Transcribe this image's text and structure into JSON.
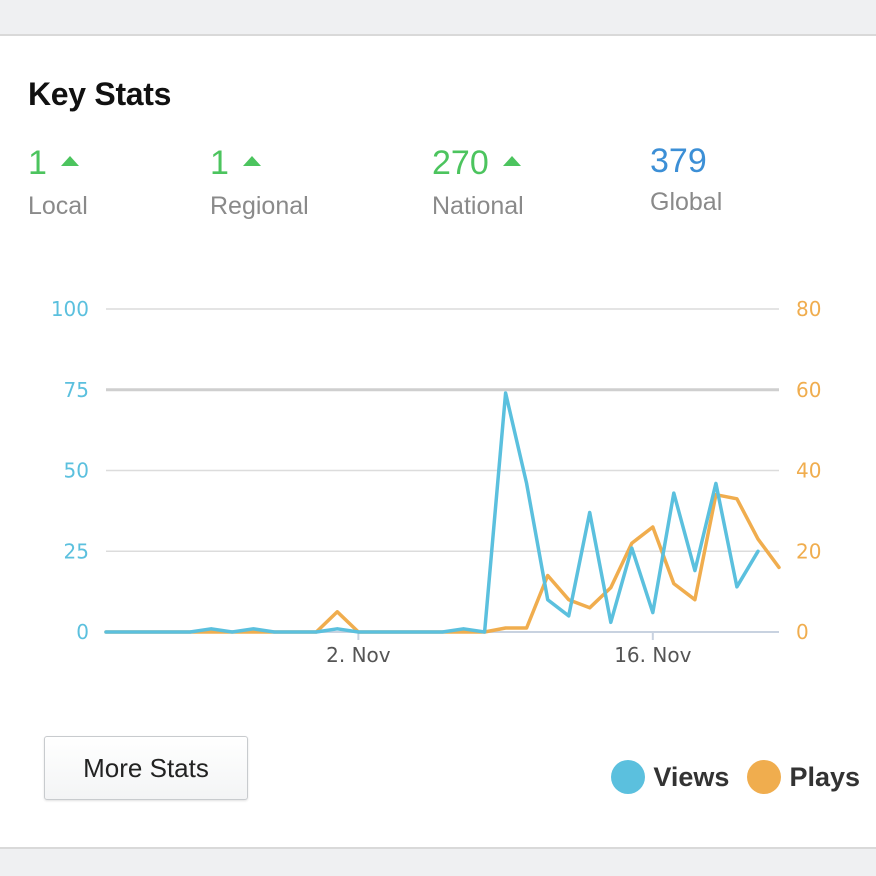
{
  "card": {
    "title": "Key Stats",
    "stats": [
      {
        "value": "1",
        "label": "Local",
        "trend": "up",
        "color": "#4cc45e"
      },
      {
        "value": "1",
        "label": "Regional",
        "trend": "up",
        "color": "#4cc45e"
      },
      {
        "value": "270",
        "label": "National",
        "trend": "up",
        "color": "#4cc45e"
      },
      {
        "value": "379",
        "label": "Global",
        "trend": "none",
        "color": "#3c8fd6"
      }
    ],
    "more_stats_label": "More Stats"
  },
  "chart_data": {
    "type": "line",
    "x_tick_labels": [
      "2. Nov",
      "16. Nov"
    ],
    "x_tick_index": [
      12,
      26
    ],
    "y_left": {
      "ticks": [
        "0",
        "25",
        "50",
        "75",
        "100"
      ],
      "range": [
        0,
        100
      ],
      "color": "#5bc0de"
    },
    "y_right": {
      "ticks": [
        "0",
        "20",
        "40",
        "60",
        "80"
      ],
      "range": [
        0,
        80
      ],
      "color": "#f0ad4e"
    },
    "grid": true,
    "legend_position": "bottom-right",
    "series": [
      {
        "name": "Views",
        "axis": "left",
        "color": "#5bc0de",
        "values": [
          0,
          0,
          0,
          0,
          0,
          1,
          0,
          1,
          0,
          0,
          0,
          1,
          0,
          0,
          0,
          0,
          0,
          1,
          0,
          74,
          46,
          10,
          5,
          37,
          3,
          26,
          6,
          43,
          19,
          46,
          14,
          25
        ]
      },
      {
        "name": "Plays",
        "axis": "right",
        "color": "#f0ad4e",
        "values": [
          0,
          0,
          0,
          0,
          0,
          0,
          0,
          0,
          0,
          0,
          0,
          5,
          0,
          0,
          0,
          0,
          0,
          0,
          0,
          1,
          1,
          14,
          8,
          6,
          11,
          22,
          26,
          12,
          8,
          34,
          33,
          23,
          16
        ]
      }
    ]
  }
}
